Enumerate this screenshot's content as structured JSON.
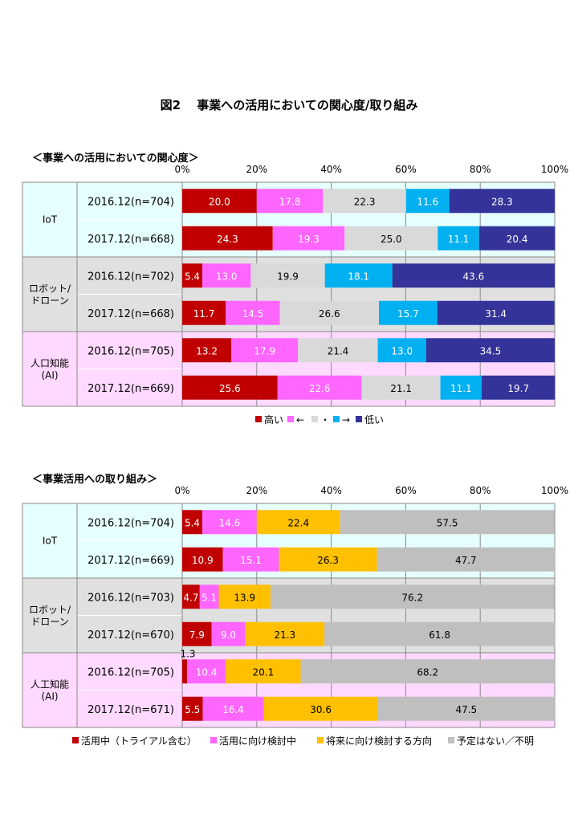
{
  "figure_title": "図2　 事業への活用においての関心度/取り組み",
  "chart_data": [
    {
      "type": "bar",
      "orientation": "horizontal",
      "stacked": true,
      "title": "＜事業への活用においての関心度＞",
      "x_ticks": [
        "0%",
        "20%",
        "40%",
        "60%",
        "80%",
        "100%"
      ],
      "xlim": [
        0,
        100
      ],
      "grid": true,
      "legend_position": "bottom",
      "groups": [
        {
          "label": "IoT",
          "color": "#e6ffff",
          "rows": [
            {
              "label": "2016.12(n=704)",
              "values": [
                20.0,
                17.8,
                22.3,
                11.6,
                28.3
              ]
            },
            {
              "label": "2017.12(n=668)",
              "values": [
                24.3,
                19.3,
                25.0,
                11.1,
                20.4
              ]
            }
          ]
        },
        {
          "label": "ロボット/\nドローン",
          "color": "#e0e0e0",
          "rows": [
            {
              "label": "2016.12(n=702)",
              "values": [
                5.4,
                13.0,
                19.9,
                18.1,
                43.6
              ]
            },
            {
              "label": "2017.12(n=668)",
              "values": [
                11.7,
                14.5,
                26.6,
                15.7,
                31.4
              ]
            }
          ]
        },
        {
          "label": "人口知能\n(AI)",
          "color": "#ffd9ff",
          "rows": [
            {
              "label": "2016.12(n=705)",
              "values": [
                13.2,
                17.9,
                21.4,
                13.0,
                34.5
              ]
            },
            {
              "label": "2017.12(n=669)",
              "values": [
                25.6,
                22.6,
                21.1,
                11.1,
                19.7
              ]
            }
          ]
        }
      ],
      "series": [
        {
          "name": "高い",
          "color": "#c00000",
          "label_color": "#ffffff"
        },
        {
          "name": "←",
          "color": "#ff66ff",
          "label_color": "#ffffff"
        },
        {
          "name": "・",
          "color": "#d9d9d9",
          "label_color": "#000000"
        },
        {
          "name": "→",
          "color": "#00b0f0",
          "label_color": "#ffffff"
        },
        {
          "name": "低い",
          "color": "#333399",
          "label_color": "#ffffff"
        }
      ]
    },
    {
      "type": "bar",
      "orientation": "horizontal",
      "stacked": true,
      "title": "＜事業活用への取り組み＞",
      "x_ticks": [
        "0%",
        "20%",
        "40%",
        "60%",
        "80%",
        "100%"
      ],
      "xlim": [
        0,
        100
      ],
      "grid": true,
      "legend_position": "bottom",
      "groups": [
        {
          "label": "IoT",
          "color": "#e6ffff",
          "rows": [
            {
              "label": "2016.12(n=704)",
              "values": [
                5.4,
                14.6,
                22.4,
                57.5
              ]
            },
            {
              "label": "2017.12(n=669)",
              "values": [
                10.9,
                15.1,
                26.3,
                47.7
              ]
            }
          ]
        },
        {
          "label": "ロボット/\nドローン",
          "color": "#e0e0e0",
          "rows": [
            {
              "label": "2016.12(n=703)",
              "values": [
                4.7,
                5.1,
                13.9,
                76.2
              ]
            },
            {
              "label": "2017.12(n=670)",
              "values": [
                7.9,
                9.0,
                21.3,
                61.8
              ]
            }
          ]
        },
        {
          "label": "人工知能\n(AI)",
          "color": "#ffd9ff",
          "rows": [
            {
              "label": "2016.12(n=705)",
              "values": [
                1.3,
                10.4,
                20.1,
                68.2
              ]
            },
            {
              "label": "2017.12(n=671)",
              "values": [
                5.5,
                16.4,
                30.6,
                47.5
              ]
            }
          ]
        }
      ],
      "series": [
        {
          "name": "活用中（トライアル含む）",
          "color": "#c00000",
          "label_color": "#ffffff"
        },
        {
          "name": "活用に向け検討中",
          "color": "#ff66ff",
          "label_color": "#ffffff"
        },
        {
          "name": "将来に向け検討する方向",
          "color": "#ffc000",
          "label_color": "#000000"
        },
        {
          "name": "予定はない／不明",
          "color": "#bfbfbf",
          "label_color": "#000000"
        }
      ]
    }
  ]
}
